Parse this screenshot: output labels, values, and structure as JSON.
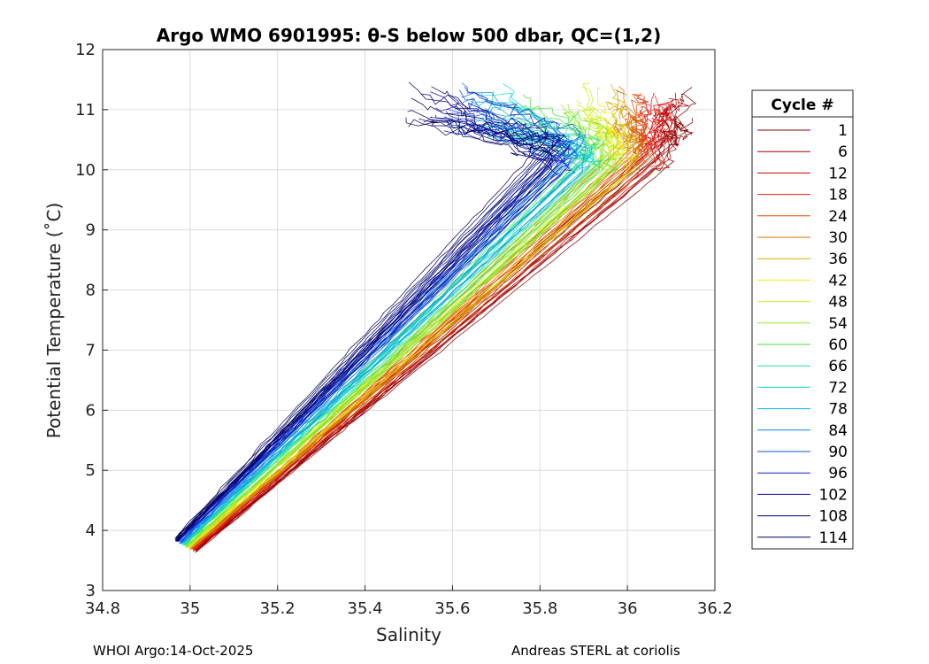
{
  "chart_data": {
    "type": "line",
    "title": "Argo WMO 6901995: θ-S below 500 dbar,  QC=(1,2)",
    "xlabel": "Salinity",
    "ylabel": "Potential Temperature (˚C)",
    "xlim": [
      34.8,
      36.2
    ],
    "ylim": [
      3,
      12
    ],
    "xticks": [
      34.8,
      35,
      35.2,
      35.4,
      35.6,
      35.8,
      36,
      36.2
    ],
    "xtick_labels": [
      "34.8",
      "35",
      "35.2",
      "35.4",
      "35.6",
      "35.8",
      "36",
      "36.2"
    ],
    "yticks": [
      3,
      4,
      5,
      6,
      7,
      8,
      9,
      10,
      11,
      12
    ],
    "ytick_labels": [
      "3",
      "4",
      "5",
      "6",
      "7",
      "8",
      "9",
      "10",
      "11",
      "12"
    ],
    "grid": true,
    "legend": {
      "title": "Cycle #",
      "position": "right-outside",
      "entries": [
        {
          "label": "1",
          "color": "#7f0000"
        },
        {
          "label": "6",
          "color": "#a50000"
        },
        {
          "label": "12",
          "color": "#d00000"
        },
        {
          "label": "18",
          "color": "#e02010"
        },
        {
          "label": "24",
          "color": "#e04a00"
        },
        {
          "label": "30",
          "color": "#d27800"
        },
        {
          "label": "36",
          "color": "#d4b400"
        },
        {
          "label": "42",
          "color": "#eeee10"
        },
        {
          "label": "48",
          "color": "#c8f020"
        },
        {
          "label": "54",
          "color": "#90ea30"
        },
        {
          "label": "60",
          "color": "#44e040"
        },
        {
          "label": "66",
          "color": "#20e09a"
        },
        {
          "label": "72",
          "color": "#10d8d0"
        },
        {
          "label": "78",
          "color": "#10b4e8"
        },
        {
          "label": "84",
          "color": "#1080e0"
        },
        {
          "label": "90",
          "color": "#1050e0"
        },
        {
          "label": "96",
          "color": "#1020c8"
        },
        {
          "label": "102",
          "color": "#0810a0"
        },
        {
          "label": "108",
          "color": "#000078"
        },
        {
          "label": "114",
          "color": "#00005a"
        }
      ]
    },
    "series_description": "theta-S profiles per cycle, approx. envelope",
    "profile_shape": {
      "deep_end": {
        "salinity": 35.01,
        "temp": 3.75
      },
      "knee": {
        "salinity": 36.1,
        "temp": 10.5
      },
      "upper_blue": {
        "salinity": 35.5,
        "temp": 11.0
      },
      "upper_red": {
        "salinity": 36.15,
        "temp": 11.3
      }
    }
  },
  "footer": {
    "left": "WHOI Argo:14-Oct-2025",
    "right": "Andreas STERL at coriolis"
  }
}
